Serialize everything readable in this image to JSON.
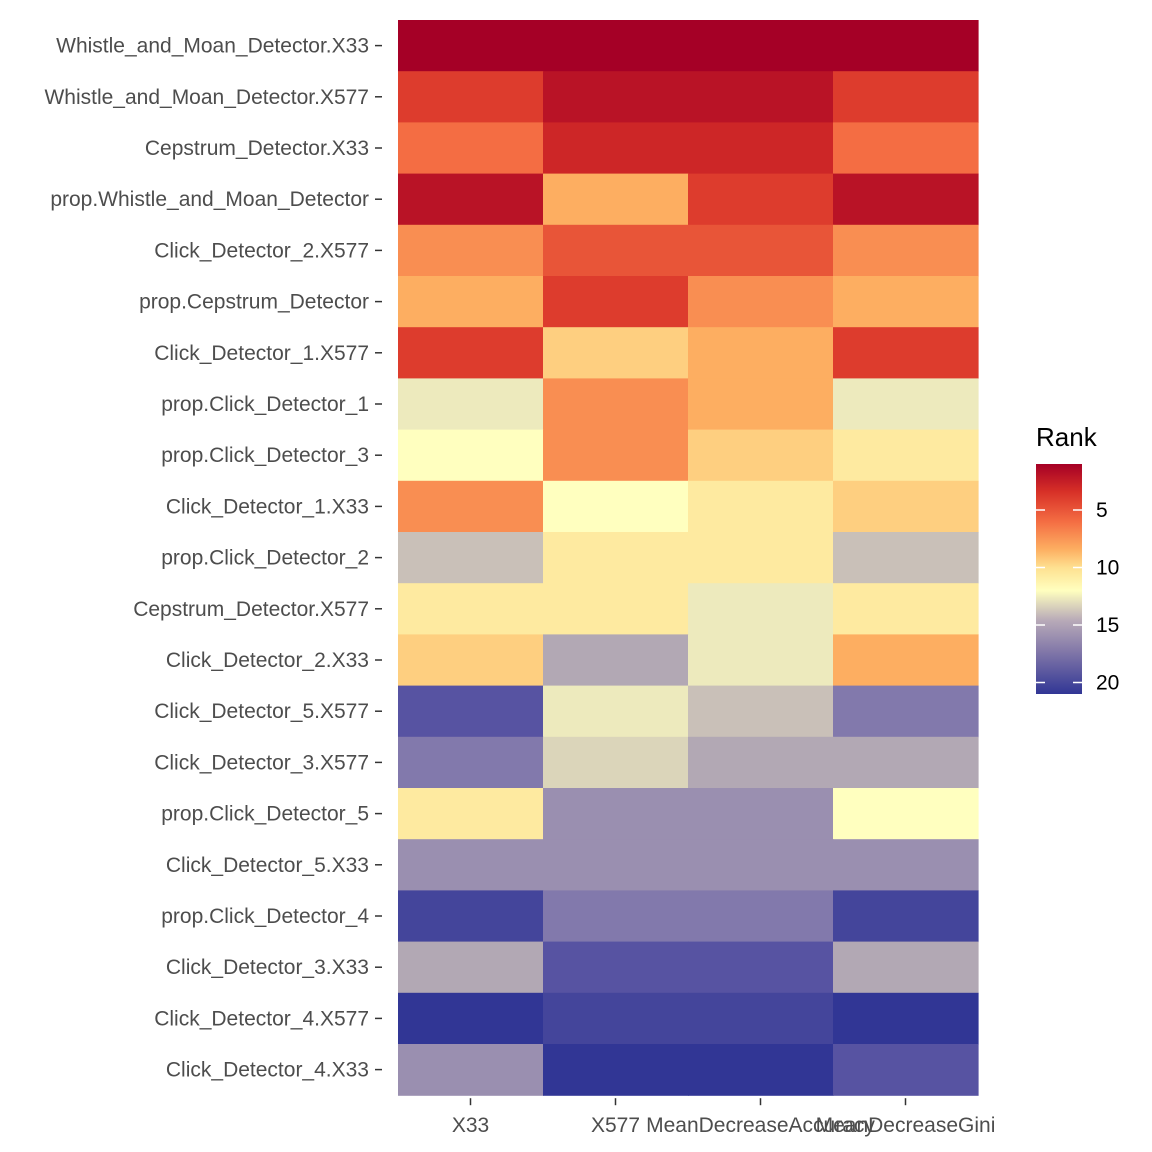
{
  "chart_data": {
    "type": "heatmap",
    "title": "",
    "xlabel": "",
    "ylabel": "",
    "columns": [
      "X33",
      "X577",
      "MeanDecreaseAccuracy",
      "MeanDecreaseGini"
    ],
    "rows": [
      "Whistle_and_Moan_Detector.X33",
      "Whistle_and_Moan_Detector.X577",
      "Cepstrum_Detector.X33",
      "prop.Whistle_and_Moan_Detector",
      "Click_Detector_2.X577",
      "prop.Cepstrum_Detector",
      "Click_Detector_1.X577",
      "prop.Click_Detector_1",
      "prop.Click_Detector_3",
      "Click_Detector_1.X33",
      "prop.Click_Detector_2",
      "Cepstrum_Detector.X577",
      "Click_Detector_2.X33",
      "Click_Detector_5.X577",
      "Click_Detector_3.X577",
      "prop.Click_Detector_5",
      "Click_Detector_5.X33",
      "prop.Click_Detector_4",
      "Click_Detector_3.X33",
      "Click_Detector_4.X577",
      "Click_Detector_4.X33"
    ],
    "values": [
      [
        1,
        1,
        1,
        1
      ],
      [
        4,
        2,
        2,
        4
      ],
      [
        6,
        3,
        3,
        6
      ],
      [
        2,
        8,
        4,
        2
      ],
      [
        7,
        5,
        5,
        7
      ],
      [
        8,
        4,
        7,
        8
      ],
      [
        4,
        9,
        8,
        4
      ],
      [
        12,
        7,
        8,
        12
      ],
      [
        11,
        7,
        9,
        10
      ],
      [
        7,
        11,
        10,
        9
      ],
      [
        14,
        10,
        10,
        14
      ],
      [
        10,
        10,
        12,
        10
      ],
      [
        9,
        15,
        12,
        8
      ],
      [
        19,
        12,
        14,
        17
      ],
      [
        17,
        13,
        15,
        15
      ],
      [
        10,
        16,
        16,
        11
      ],
      [
        16,
        16,
        16,
        16
      ],
      [
        20,
        17,
        17,
        20
      ],
      [
        15,
        19,
        19,
        15
      ],
      [
        21,
        20,
        20,
        21
      ],
      [
        16,
        21,
        21,
        19
      ]
    ],
    "color_scale": {
      "name": "Rank",
      "min": 1,
      "max": 21,
      "ticks": [
        5,
        10,
        15,
        20
      ],
      "low_color": "#a50026",
      "mid_color": "#ffffbf",
      "high_color": "#313695"
    },
    "legend": "right"
  }
}
